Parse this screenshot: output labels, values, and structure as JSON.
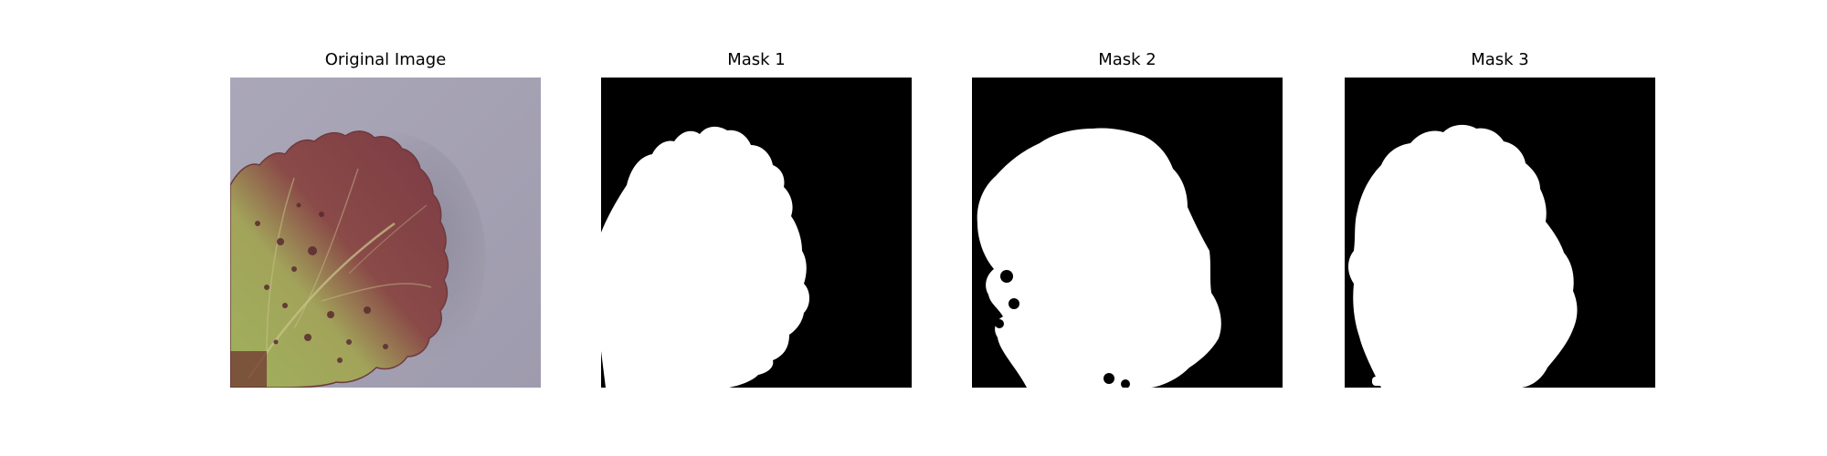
{
  "panels": [
    {
      "title": "Original Image",
      "image": "strawberry-leaf-photo"
    },
    {
      "title": "Mask 1",
      "image": "binary-mask"
    },
    {
      "title": "Mask 2",
      "image": "binary-mask"
    },
    {
      "title": "Mask 3",
      "image": "binary-mask"
    }
  ],
  "colors": {
    "background": "#ffffff",
    "mask_foreground": "#ffffff",
    "mask_background": "#000000",
    "surface": "#a6a3b4",
    "leaf_green": "#9aad5c",
    "leaf_red": "#7a3b41"
  }
}
